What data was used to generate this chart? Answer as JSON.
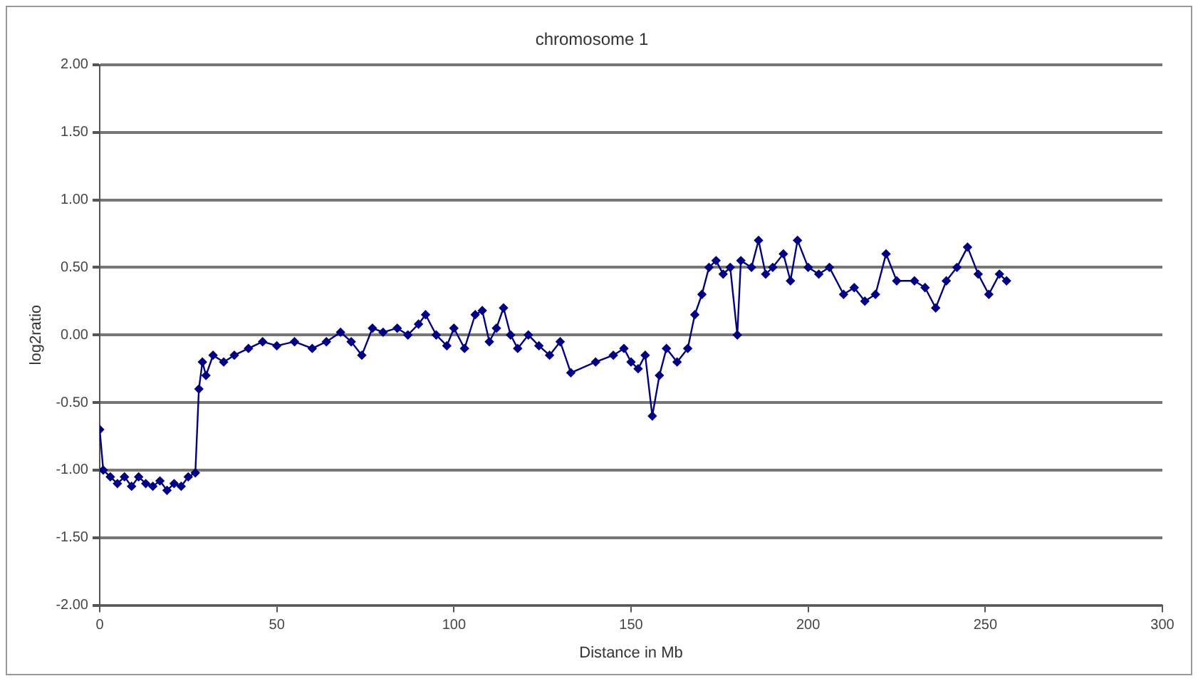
{
  "chart_data": {
    "type": "line",
    "title": "chromosome 1",
    "xlabel": "Distance in Mb",
    "ylabel": "log2ratio",
    "xlim": [
      0,
      300
    ],
    "xticks": [
      0,
      50,
      100,
      150,
      200,
      250,
      300
    ],
    "ylim": [
      -2,
      2
    ],
    "yticks": [
      {
        "value": 2,
        "label": "2.00"
      },
      {
        "value": 1.5,
        "label": "1.50"
      },
      {
        "value": 1,
        "label": "1.00"
      },
      {
        "value": 0.5,
        "label": "0.50"
      },
      {
        "value": 0,
        "label": "0.00"
      },
      {
        "value": -0.5,
        "label": "-0.50"
      },
      {
        "value": -1,
        "label": "-1.00"
      },
      {
        "value": -1.5,
        "label": "-1.50"
      },
      {
        "value": -2,
        "label": "-2.00"
      }
    ],
    "grid": "y",
    "legend": false,
    "marker": "diamond",
    "line_style": "solid",
    "series": [
      {
        "color": "#000080",
        "x": [
          0,
          1,
          3,
          5,
          7,
          9,
          11,
          13,
          15,
          17,
          19,
          21,
          23,
          25,
          27,
          28,
          29,
          30,
          32,
          35,
          38,
          42,
          46,
          50,
          55,
          60,
          64,
          68,
          71,
          74,
          77,
          80,
          84,
          87,
          90,
          92,
          95,
          98,
          100,
          103,
          106,
          108,
          110,
          112,
          114,
          116,
          118,
          121,
          124,
          127,
          130,
          133,
          140,
          145,
          148,
          150,
          152,
          154,
          156,
          158,
          160,
          163,
          166,
          168,
          170,
          172,
          174,
          176,
          178,
          180,
          181,
          184,
          186,
          188,
          190,
          193,
          195,
          197,
          200,
          203,
          206,
          210,
          213,
          216,
          219,
          222,
          225,
          230,
          233,
          236,
          239,
          242,
          245,
          248,
          251,
          254,
          256
        ],
        "values": [
          -0.7,
          -1.0,
          -1.05,
          -1.1,
          -1.05,
          -1.12,
          -1.05,
          -1.1,
          -1.12,
          -1.08,
          -1.15,
          -1.1,
          -1.12,
          -1.05,
          -1.02,
          -0.4,
          -0.2,
          -0.3,
          -0.15,
          -0.2,
          -0.15,
          -0.1,
          -0.05,
          -0.08,
          -0.05,
          -0.1,
          -0.05,
          0.02,
          -0.05,
          -0.15,
          0.05,
          0.02,
          0.05,
          0.0,
          0.08,
          0.15,
          0.0,
          -0.08,
          0.05,
          -0.1,
          0.15,
          0.18,
          -0.05,
          0.05,
          0.2,
          0.0,
          -0.1,
          0.0,
          -0.08,
          -0.15,
          -0.05,
          -0.28,
          -0.2,
          -0.15,
          -0.1,
          -0.2,
          -0.25,
          -0.15,
          -0.6,
          -0.3,
          -0.1,
          -0.2,
          -0.1,
          0.15,
          0.3,
          0.5,
          0.55,
          0.45,
          0.5,
          0.0,
          0.55,
          0.5,
          0.7,
          0.45,
          0.5,
          0.6,
          0.4,
          0.7,
          0.5,
          0.45,
          0.5,
          0.3,
          0.35,
          0.25,
          0.3,
          0.6,
          0.4,
          0.4,
          0.35,
          0.2,
          0.4,
          0.5,
          0.65,
          0.45,
          0.3,
          0.45,
          0.4
        ]
      }
    ]
  }
}
